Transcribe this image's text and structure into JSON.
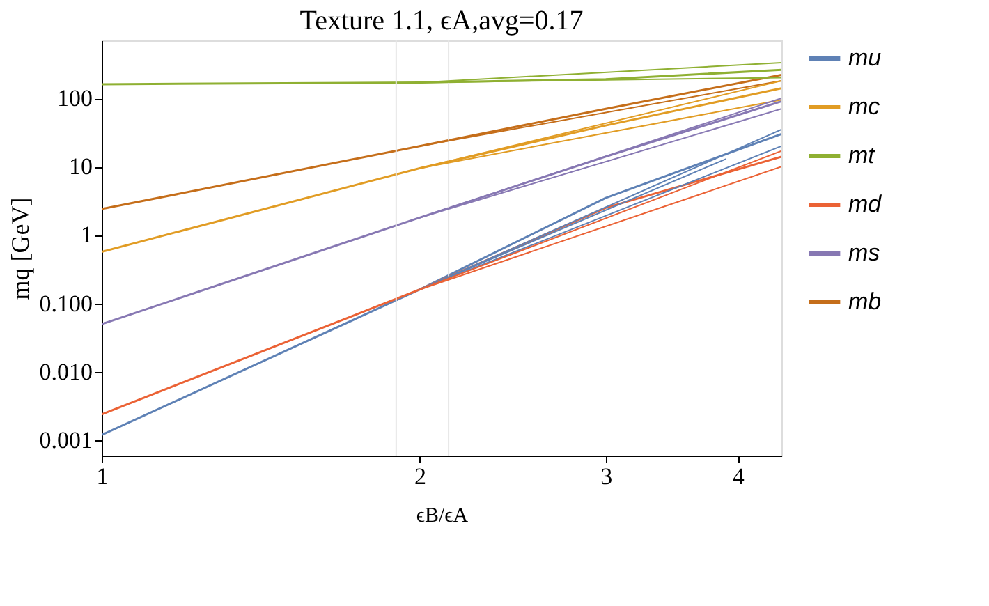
{
  "chart_data": {
    "type": "line",
    "title": "Texture 1.1, ϵA,avg=0.17",
    "xlabel": "ϵB/ϵA",
    "ylabel": "mq [GeV]",
    "log": "xy",
    "grid": false,
    "legend": "right",
    "line_style": "solid",
    "marker": "none",
    "xlim": [
      1,
      4.4
    ],
    "xticks": [
      1,
      2,
      3,
      4
    ],
    "ylim": [
      0.0006,
      700
    ],
    "yticks": [
      {
        "value": 0.001,
        "label": "0.001"
      },
      {
        "value": 0.01,
        "label": "0.010"
      },
      {
        "value": 0.1,
        "label": "0.100"
      },
      1,
      10,
      100
    ],
    "ref_lines": [
      {
        "axis": "x",
        "value": 1.9,
        "color": "#e6e6e6"
      },
      {
        "axis": "x",
        "value": 2.13,
        "color": "#e6e6e6"
      }
    ],
    "series": [
      {
        "name": "mu",
        "color": "#5e81b5",
        "x": [
          1,
          2,
          3,
          4.4
        ],
        "values": [
          0.0012,
          0.16,
          3.5,
          30
        ]
      },
      {
        "name": "mc",
        "color": "#e19c24",
        "x": [
          1,
          2,
          3,
          4.4
        ],
        "values": [
          0.57,
          9.5,
          40,
          140
        ]
      },
      {
        "name": "mt",
        "color": "#8fb032",
        "x": [
          1,
          2,
          3,
          4.4
        ],
        "values": [
          160,
          170,
          190,
          260
        ]
      },
      {
        "name": "md",
        "color": "#eb6235",
        "x": [
          1,
          2,
          3,
          4.4
        ],
        "values": [
          0.0024,
          0.16,
          2.5,
          14
        ]
      },
      {
        "name": "ms",
        "color": "#8778b3",
        "x": [
          1,
          2,
          3,
          4.4
        ],
        "values": [
          0.05,
          1.8,
          14,
          90
        ]
      },
      {
        "name": "mb",
        "color": "#c56e1a",
        "x": [
          1,
          2,
          3,
          4.4
        ],
        "values": [
          2.4,
          20,
          70,
          220
        ]
      },
      {
        "color": "#8fb032",
        "x": [
          2,
          4.4
        ],
        "values": [
          170,
          330
        ]
      },
      {
        "color": "#8fb032",
        "x": [
          2,
          4.4
        ],
        "values": [
          170,
          200
        ]
      },
      {
        "color": "#c56e1a",
        "x": [
          2,
          4.4
        ],
        "values": [
          20,
          180
        ]
      },
      {
        "color": "#e19c24",
        "x": [
          2,
          4.4
        ],
        "values": [
          9.5,
          180
        ]
      },
      {
        "color": "#e19c24",
        "x": [
          2,
          4.4
        ],
        "values": [
          9.5,
          95
        ]
      },
      {
        "color": "#8778b3",
        "x": [
          2,
          4.4
        ],
        "values": [
          1.8,
          100
        ]
      },
      {
        "color": "#8778b3",
        "x": [
          2,
          4.4
        ],
        "values": [
          1.8,
          70
        ]
      },
      {
        "color": "#5e81b5",
        "x": [
          2,
          4.4
        ],
        "values": [
          0.16,
          35
        ]
      },
      {
        "color": "#5e81b5",
        "x": [
          2,
          4.4
        ],
        "values": [
          0.16,
          20
        ]
      },
      {
        "color": "#5e81b5",
        "x": [
          2,
          3.9
        ],
        "values": [
          0.16,
          13
        ]
      },
      {
        "color": "#eb6235",
        "x": [
          2,
          4.4
        ],
        "values": [
          0.16,
          17
        ]
      },
      {
        "color": "#eb6235",
        "x": [
          2,
          4.4
        ],
        "values": [
          0.16,
          10
        ]
      }
    ]
  }
}
